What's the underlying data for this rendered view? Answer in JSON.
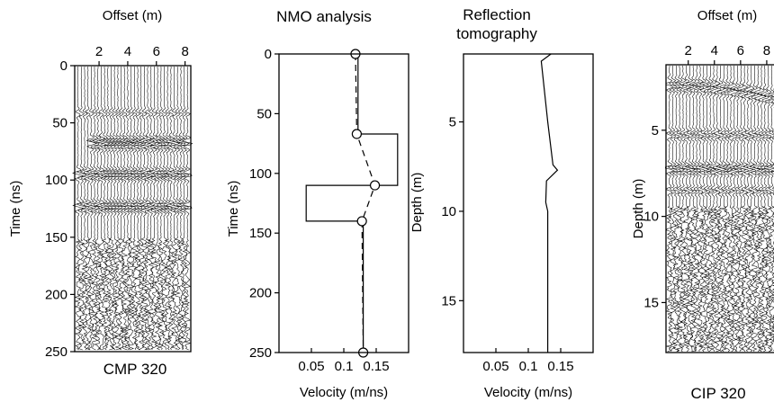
{
  "colors": {
    "ink": "#000000",
    "background": "#ffffff"
  },
  "panels": [
    {
      "id": "cmp",
      "title": "Offset (m)",
      "x_ticks": [
        2,
        4,
        6,
        8
      ],
      "xlim": [
        0.3,
        8.4
      ],
      "ylabel": "Time (ns)",
      "y_ticks": [
        0,
        50,
        100,
        150,
        200,
        250
      ],
      "ylim": [
        0,
        250
      ],
      "caption": "CMP 320"
    },
    {
      "id": "nmo",
      "title": "NMO analysis",
      "x_ticks": [
        0.05,
        0.1,
        0.15
      ],
      "xlim": [
        0,
        0.2
      ],
      "xlabel": "Velocity (m/ns)",
      "ylabel": "Time (ns)",
      "y_ticks": [
        0,
        50,
        100,
        150,
        200,
        250
      ],
      "ylim": [
        0,
        250
      ]
    },
    {
      "id": "tomo",
      "title_line1": "Reflection",
      "title_line2": "tomography",
      "x_ticks": [
        0.05,
        0.1,
        0.15
      ],
      "xlim": [
        0,
        0.2
      ],
      "xlabel": "Velocity (m/ns)",
      "ylabel": "Depth (m)",
      "y_ticks": [
        5,
        10,
        15
      ],
      "ylim": [
        1.2,
        17.9
      ]
    },
    {
      "id": "cip",
      "title": "Offset (m)",
      "x_ticks": [
        2,
        4,
        6,
        8
      ],
      "xlim": [
        0.3,
        8.9
      ],
      "ylabel": "Depth (m)",
      "y_ticks": [
        5,
        10,
        15
      ],
      "ylim": [
        1.2,
        17.9
      ],
      "caption": "CIP 320"
    }
  ],
  "chart_data": [
    {
      "type": "heatmap",
      "name": "CMP 320 gather",
      "xlabel": "Offset (m)",
      "ylabel": "Time (ns)",
      "xlim": [
        0.3,
        8.4
      ],
      "ylim": [
        0,
        250
      ],
      "x_ticks": [
        2,
        4,
        6,
        8
      ],
      "y_ticks": [
        0,
        50,
        100,
        150,
        200,
        250
      ],
      "reflection_times_ns": [
        67,
        96,
        125
      ],
      "caption": "CMP 320"
    },
    {
      "type": "line",
      "title": "NMO analysis",
      "xlabel": "Velocity (m/ns)",
      "ylabel": "Time (ns)",
      "xlim": [
        0,
        0.2
      ],
      "ylim": [
        0,
        250
      ],
      "y_inverted": true,
      "series": [
        {
          "style": "solid-step",
          "points": [
            [
              0.122,
              0
            ],
            [
              0.122,
              67
            ],
            [
              0.183,
              67
            ],
            [
              0.183,
              110
            ],
            [
              0.042,
              110
            ],
            [
              0.042,
              140
            ],
            [
              0.13,
              140
            ],
            [
              0.13,
              250
            ]
          ]
        },
        {
          "style": "dashed-circles",
          "points": [
            [
              0.118,
              0
            ],
            [
              0.12,
              67
            ],
            [
              0.148,
              110
            ],
            [
              0.128,
              140
            ],
            [
              0.13,
              250
            ]
          ],
          "marker": "circle"
        }
      ]
    },
    {
      "type": "line",
      "title": "Reflection tomography",
      "xlabel": "Velocity (m/ns)",
      "ylabel": "Depth (m)",
      "xlim": [
        0,
        0.2
      ],
      "ylim": [
        1.2,
        17.9
      ],
      "y_inverted": true,
      "series": [
        {
          "points": [
            [
              0.135,
              1.2
            ],
            [
              0.12,
              1.6
            ],
            [
              0.13,
              5.0
            ],
            [
              0.138,
              7.4
            ],
            [
              0.145,
              7.7
            ],
            [
              0.128,
              8.3
            ],
            [
              0.127,
              9.5
            ],
            [
              0.13,
              10.0
            ],
            [
              0.13,
              17.9
            ]
          ]
        }
      ]
    },
    {
      "type": "heatmap",
      "name": "CIP 320 gather",
      "xlabel": "Offset (m)",
      "ylabel": "Depth (m)",
      "xlim": [
        0.3,
        8.9
      ],
      "ylim": [
        1.2,
        17.9
      ],
      "x_ticks": [
        2,
        4,
        6,
        8
      ],
      "y_ticks": [
        5,
        10,
        15
      ],
      "reflection_depths_m": [
        2.8,
        6.0,
        8.0
      ],
      "caption": "CIP 320"
    }
  ]
}
